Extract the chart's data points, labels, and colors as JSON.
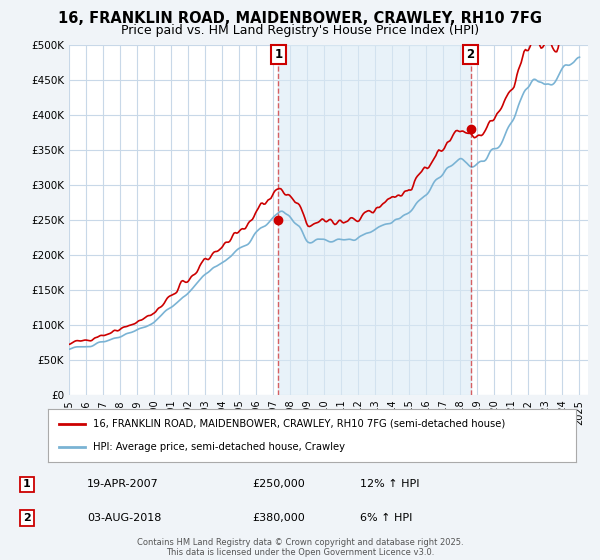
{
  "title_line1": "16, FRANKLIN ROAD, MAIDENBOWER, CRAWLEY, RH10 7FG",
  "title_line2": "Price paid vs. HM Land Registry's House Price Index (HPI)",
  "title_fontsize": 10.5,
  "subtitle_fontsize": 9,
  "xlim_start": 1995.0,
  "xlim_end": 2025.5,
  "ylim_min": 0,
  "ylim_max": 500000,
  "yticks": [
    0,
    50000,
    100000,
    150000,
    200000,
    250000,
    300000,
    350000,
    400000,
    450000,
    500000
  ],
  "ytick_labels": [
    "£0",
    "£50K",
    "£100K",
    "£150K",
    "£200K",
    "£250K",
    "£300K",
    "£350K",
    "£400K",
    "£450K",
    "£500K"
  ],
  "xticks": [
    1995,
    1996,
    1997,
    1998,
    1999,
    2000,
    2001,
    2002,
    2003,
    2004,
    2005,
    2006,
    2007,
    2008,
    2009,
    2010,
    2011,
    2012,
    2013,
    2014,
    2015,
    2016,
    2017,
    2018,
    2019,
    2020,
    2021,
    2022,
    2023,
    2024,
    2025
  ],
  "hpi_color": "#7ab3d4",
  "price_color": "#cc0000",
  "vline_color": "#cc0000",
  "vline_style": "--",
  "vline_alpha": 0.6,
  "shade_color": "#daeaf5",
  "shade_alpha": 0.6,
  "bg_color": "#f0f4f8",
  "plot_bg_color": "#ffffff",
  "grid_color": "#c8d8e8",
  "legend_box_color": "#ffffff",
  "legend_label_price": "16, FRANKLIN ROAD, MAIDENBOWER, CRAWLEY, RH10 7FG (semi-detached house)",
  "legend_label_hpi": "HPI: Average price, semi-detached house, Crawley",
  "marker1_x": 2007.3,
  "marker1_y": 250000,
  "marker1_label": "1",
  "marker1_date": "19-APR-2007",
  "marker1_price": "£250,000",
  "marker1_hpi": "12% ↑ HPI",
  "marker2_x": 2018.6,
  "marker2_y": 380000,
  "marker2_label": "2",
  "marker2_date": "03-AUG-2018",
  "marker2_price": "£380,000",
  "marker2_hpi": "6% ↑ HPI",
  "footer_text": "Contains HM Land Registry data © Crown copyright and database right 2025.\nThis data is licensed under the Open Government Licence v3.0.",
  "hpi_lw": 1.2,
  "price_lw": 1.2
}
